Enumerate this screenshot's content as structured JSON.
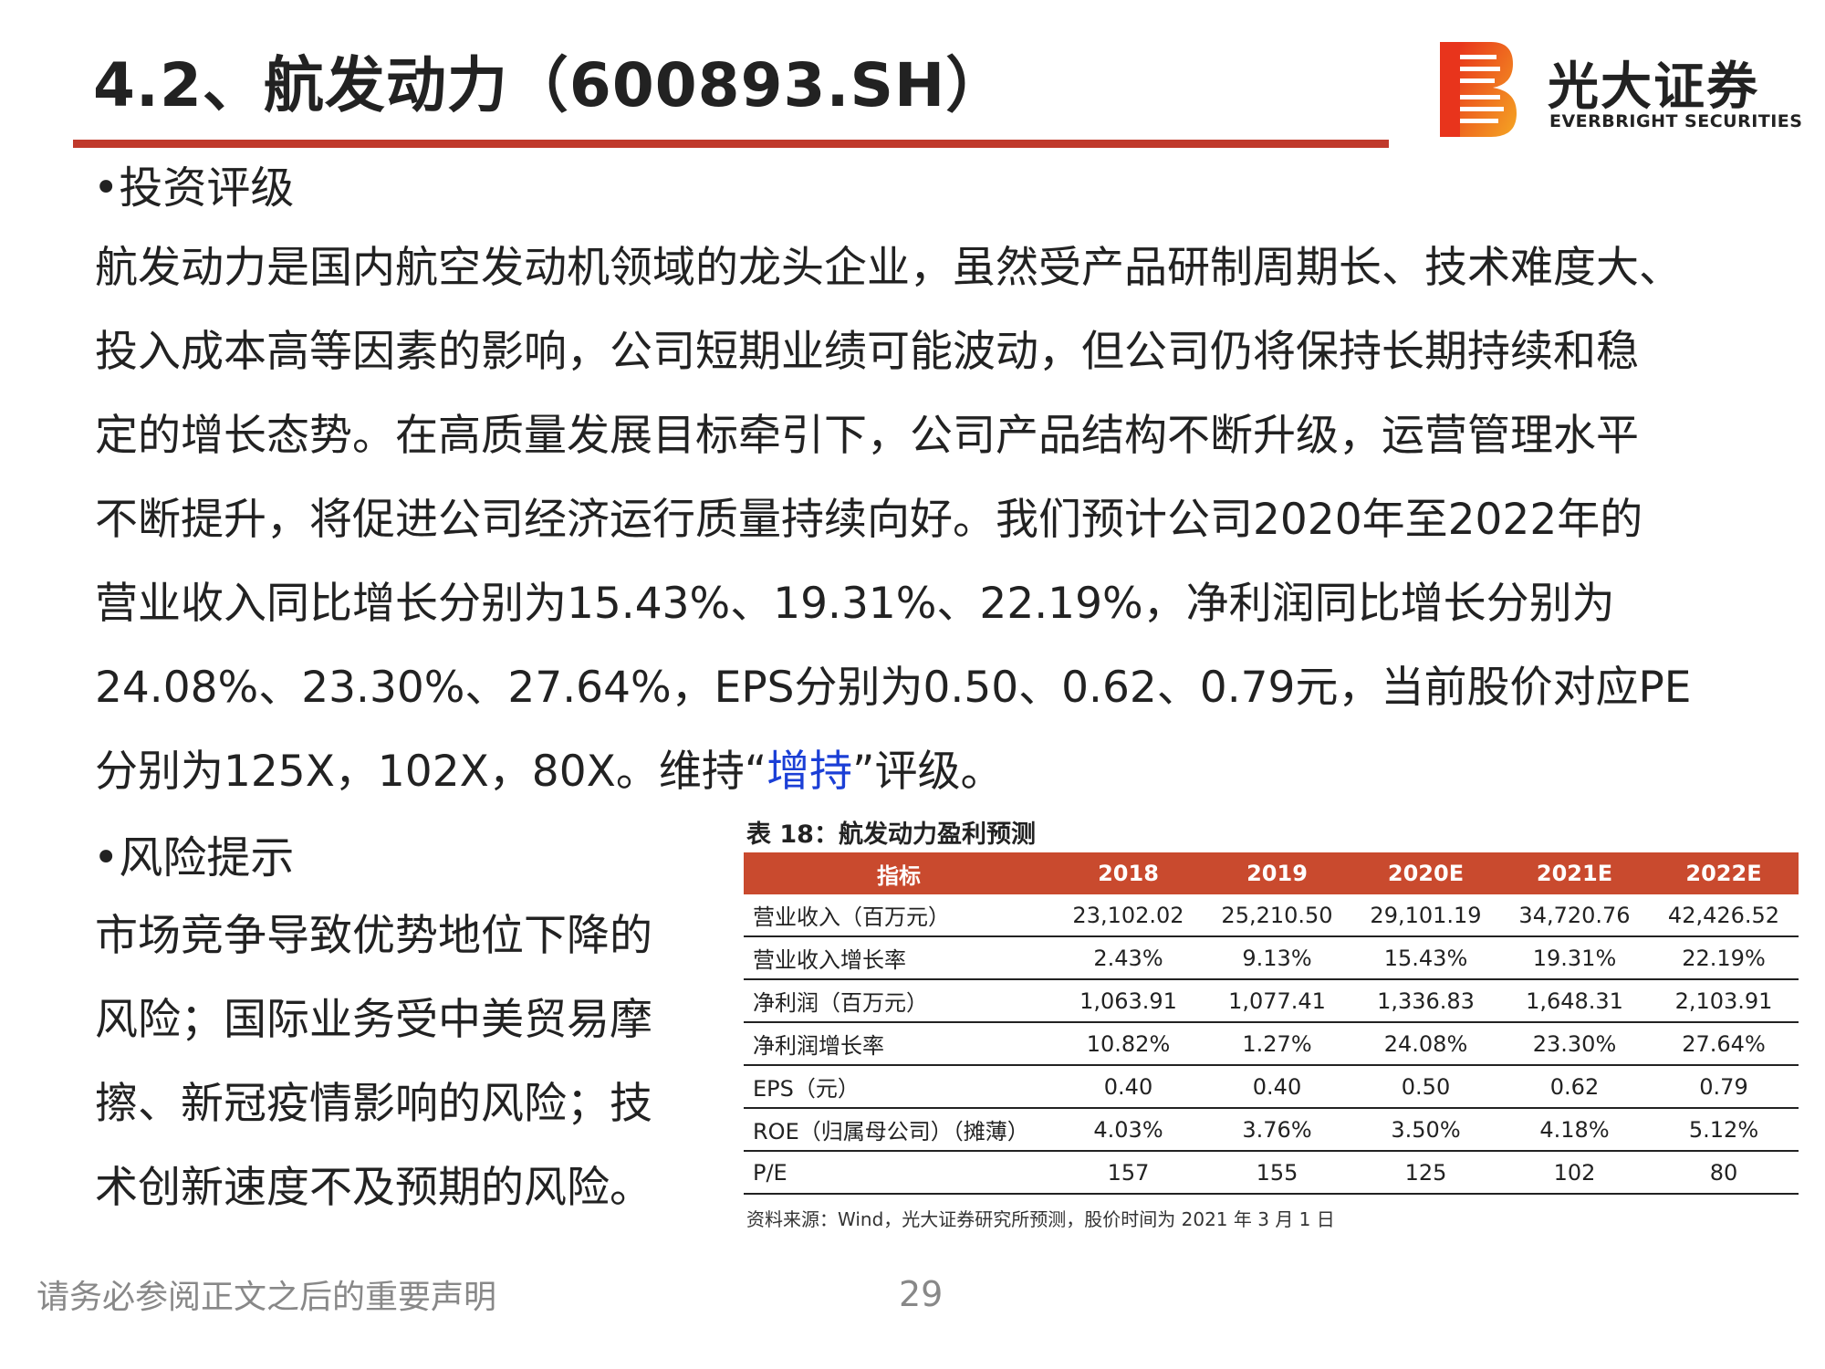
{
  "header": {
    "title": "4.2、航发动力（600893.SH）",
    "logo": {
      "name_cn": "光大证券",
      "name_en": "EVERBRIGHT SECURITIES",
      "colors": [
        "#e8341c",
        "#f5a623"
      ]
    },
    "rule_color": "#c0392b"
  },
  "rating": {
    "heading": "•投资评级",
    "lines": [
      "航发动力是国内航空发动机领域的龙头企业，虽然受产品研制周期长、技术难度大、",
      "投入成本高等因素的影响，公司短期业绩可能波动，但公司仍将保持长期持续和稳",
      "定的增长态势。在高质量发展目标牵引下，公司产品结构不断升级，运营管理水平",
      "不断提升，将促进公司经济运行质量持续向好。我们预计公司2020年至2022年的",
      "营业收入同比增长分别为15.43%、19.31%、22.19%，净利润同比增长分别为",
      "24.08%、23.30%、27.64%，EPS分别为0.50、0.62、0.79元，当前股价对应PE"
    ],
    "last_line_prefix": "分别为125X，102X，80X。维持“",
    "rating_value": "增持",
    "last_line_suffix": "”评级。",
    "highlight_color": "#1b3fd6"
  },
  "risk": {
    "heading": "•风险提示",
    "lines": [
      "市场竞争导致优势地位下降的",
      "风险；国际业务受中美贸易摩",
      "擦、新冠疫情影响的风险；技",
      "术创新速度不及预期的风险。"
    ]
  },
  "table": {
    "title": "表 18：航发动力盈利预测",
    "header_color": "#c94a2e",
    "columns": [
      "指标",
      "2018",
      "2019",
      "2020E",
      "2021E",
      "2022E"
    ],
    "rows": [
      [
        "营业收入（百万元）",
        "23,102.02",
        "25,210.50",
        "29,101.19",
        "34,720.76",
        "42,426.52"
      ],
      [
        "营业收入增长率",
        "2.43%",
        "9.13%",
        "15.43%",
        "19.31%",
        "22.19%"
      ],
      [
        "净利润（百万元）",
        "1,063.91",
        "1,077.41",
        "1,336.83",
        "1,648.31",
        "2,103.91"
      ],
      [
        "净利润增长率",
        "10.82%",
        "1.27%",
        "24.08%",
        "23.30%",
        "27.64%"
      ],
      [
        "EPS（元）",
        "0.40",
        "0.40",
        "0.50",
        "0.62",
        "0.79"
      ],
      [
        "ROE（归属母公司）（摊薄）",
        "4.03%",
        "3.76%",
        "3.50%",
        "4.18%",
        "5.12%"
      ],
      [
        "P/E",
        "157",
        "155",
        "125",
        "102",
        "80"
      ]
    ],
    "source": "资料来源：Wind，光大证券研究所预测，股价时间为 2021 年 3 月 1 日"
  },
  "footer": {
    "note": "请务必参阅正文之后的重要声明",
    "page_number": "29"
  }
}
